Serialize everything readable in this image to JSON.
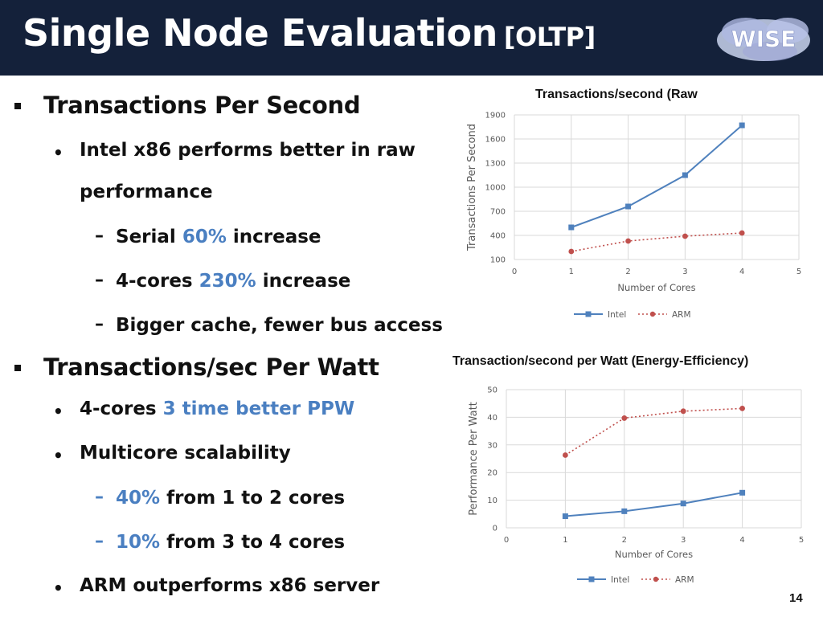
{
  "header": {
    "title": "Single Node Evaluation",
    "subtitle": "[OLTP]",
    "logo_text": "WISE",
    "bg_color": "#14213a"
  },
  "bullets": {
    "tps_heading": "Transactions Per Second",
    "intel_line1": "Intel x86 performs better in raw",
    "intel_line2": "performance",
    "serial_prefix": "Serial",
    "serial_pct": "60%",
    "serial_suffix": "increase",
    "cores_prefix": "4-cores",
    "cores_pct": "230%",
    "cores_suffix": "increase",
    "cache": "Bigger cache, fewer bus access",
    "ppw_heading": "Transactions/sec Per Watt",
    "ppw_prefix": "4-cores",
    "ppw_highlight": "3 time better PPW",
    "multicore": "Multicore scalability",
    "m1_pct": "40%",
    "m1_text": "from 1 to 2 cores",
    "m2_pct": "10%",
    "m2_text": "from 3 to 4 cores",
    "arm": "ARM outperforms x86 server"
  },
  "highlight_color": "#4a7fc1",
  "page_number": "14",
  "chart_data": [
    {
      "type": "line",
      "title": "Transactions/second (Raw",
      "xlabel": "Number of Cores",
      "ylabel": "Transactions Per Second",
      "xlim": [
        0,
        5
      ],
      "ylim": [
        100,
        1900
      ],
      "xticks": [
        "0",
        "1",
        "2",
        "3",
        "4",
        "5"
      ],
      "yticks": [
        "100",
        "400",
        "700",
        "1000",
        "1300",
        "1600",
        "1900"
      ],
      "grid": true,
      "legend": "bottom",
      "x": [
        1,
        2,
        3,
        4
      ],
      "series": [
        {
          "name": "Intel",
          "values": [
            500,
            760,
            1150,
            1770
          ],
          "color": "#4f81bd",
          "style": "solid",
          "marker": "square"
        },
        {
          "name": "ARM",
          "values": [
            200,
            330,
            390,
            430
          ],
          "color": "#c0504d",
          "style": "dotted",
          "marker": "circle"
        }
      ]
    },
    {
      "type": "line",
      "title": "Transaction/second per Watt (Energy-Efficiency)",
      "xlabel": "Number of Cores",
      "ylabel": "Performance Per Watt",
      "xlim": [
        0,
        5
      ],
      "ylim": [
        0,
        50
      ],
      "xticks": [
        "0",
        "1",
        "2",
        "3",
        "4",
        "5"
      ],
      "yticks": [
        "0",
        "10",
        "20",
        "30",
        "40",
        "50"
      ],
      "grid": true,
      "legend": "bottom",
      "x": [
        1,
        2,
        3,
        4
      ],
      "series": [
        {
          "name": "Intel",
          "values": [
            4.2,
            6.0,
            8.8,
            12.7
          ],
          "color": "#4f81bd",
          "style": "solid",
          "marker": "square"
        },
        {
          "name": "ARM",
          "values": [
            26.3,
            39.7,
            42.2,
            43.2
          ],
          "color": "#c0504d",
          "style": "dotted",
          "marker": "circle"
        }
      ]
    }
  ]
}
